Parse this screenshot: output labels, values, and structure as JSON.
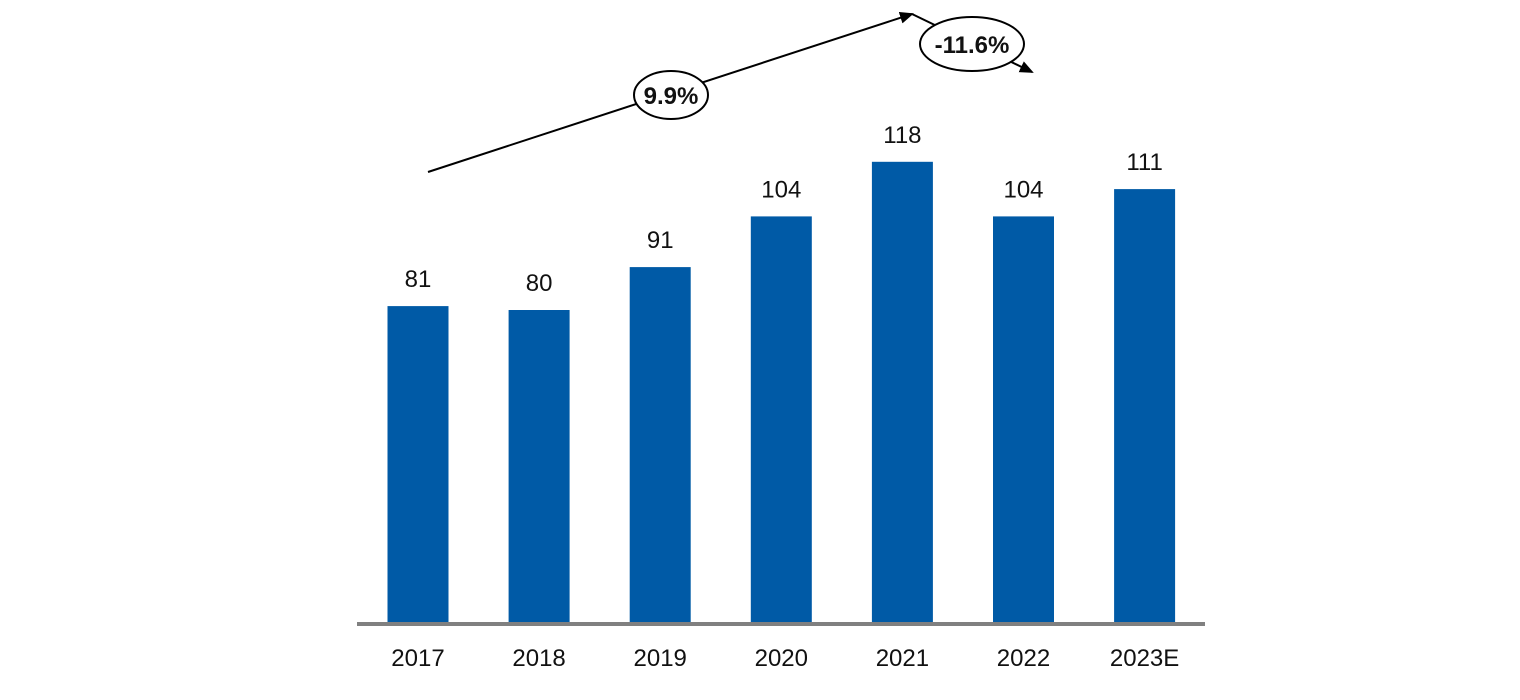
{
  "chart_data": {
    "type": "bar",
    "categories": [
      "2017",
      "2018",
      "2019",
      "2020",
      "2021",
      "2022",
      "2023E"
    ],
    "values": [
      81,
      80,
      91,
      104,
      118,
      104,
      111
    ],
    "data_labels": [
      "81",
      "80",
      "91",
      "104",
      "118",
      "104",
      "111"
    ],
    "ylim": [
      0,
      140
    ],
    "grid": false,
    "bar_color": "#005AA6",
    "axis_color": "#808080",
    "annotations": [
      {
        "text": "9.9%",
        "from": "2017",
        "to": "2021",
        "direction": "up"
      },
      {
        "text": "-11.6%",
        "from": "2021",
        "to": "2022",
        "direction": "down"
      }
    ]
  }
}
